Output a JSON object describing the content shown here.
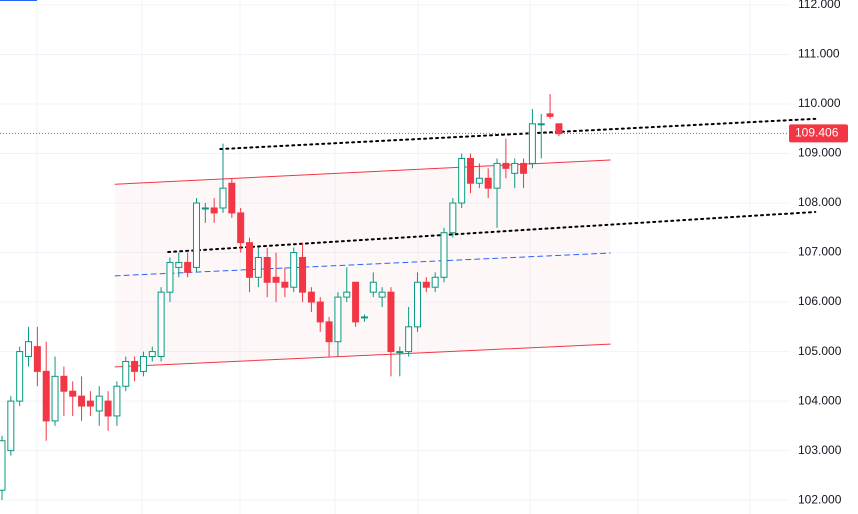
{
  "chart_data": {
    "type": "candlestick",
    "up_color": "#089981",
    "down_color": "#f23645",
    "open": [
      102.2,
      103.0,
      104.0,
      104.9,
      105.1,
      104.6,
      103.6,
      104.5,
      104.2,
      104.1,
      104.0,
      103.8,
      104.0,
      103.7,
      104.3,
      104.8,
      104.6,
      104.9,
      104.9,
      106.2,
      106.7,
      106.8,
      106.7,
      107.9,
      107.9,
      107.9,
      108.4,
      107.8,
      107.2,
      106.5,
      106.9,
      106.5,
      106.4,
      106.3,
      106.9,
      106.2,
      106.0,
      105.6,
      105.2,
      106.1,
      106.4,
      105.7,
      106.2,
      106.1,
      106.2,
      105.0,
      105.0,
      105.5,
      106.4,
      106.3,
      106.5,
      107.4,
      108.0,
      108.9,
      108.4,
      108.5,
      108.3,
      108.8,
      108.6,
      108.8,
      108.8,
      109.6,
      109.8,
      109.6
    ],
    "high": [
      103.3,
      104.1,
      105.1,
      105.5,
      105.5,
      105.2,
      104.9,
      104.7,
      104.4,
      104.5,
      104.2,
      104.3,
      104.2,
      104.4,
      104.9,
      104.9,
      105.0,
      105.1,
      106.3,
      106.9,
      107.0,
      107.0,
      108.1,
      108.0,
      108.1,
      109.2,
      108.5,
      107.9,
      107.3,
      107.1,
      107.1,
      107.0,
      106.7,
      107.1,
      107.2,
      106.3,
      106.1,
      105.7,
      106.2,
      106.7,
      106.4,
      105.75,
      106.6,
      106.3,
      106.3,
      105.1,
      105.9,
      106.6,
      106.5,
      106.6,
      107.5,
      108.1,
      109.0,
      109.0,
      108.8,
      108.7,
      108.9,
      109.3,
      108.9,
      108.9,
      109.9,
      109.8,
      110.2,
      109.6
    ],
    "low": [
      102.0,
      102.9,
      103.9,
      104.7,
      104.3,
      103.2,
      103.5,
      103.7,
      103.7,
      103.6,
      103.7,
      103.5,
      103.4,
      103.5,
      104.2,
      104.4,
      104.5,
      104.8,
      104.8,
      106.0,
      106.5,
      106.5,
      106.6,
      107.6,
      107.6,
      107.8,
      107.7,
      107.0,
      106.2,
      106.3,
      106.1,
      106.0,
      106.1,
      106.2,
      106.0,
      105.8,
      105.4,
      104.9,
      104.9,
      106.0,
      105.5,
      105.6,
      106.1,
      105.9,
      104.5,
      104.5,
      104.9,
      105.4,
      106.2,
      106.2,
      106.4,
      107.3,
      107.9,
      108.2,
      108.3,
      108.1,
      107.5,
      108.5,
      108.3,
      108.3,
      108.7,
      108.9,
      109.7,
      109.35
    ],
    "close": [
      103.2,
      104.0,
      105.0,
      105.2,
      104.6,
      103.6,
      104.5,
      104.2,
      104.1,
      103.9,
      103.9,
      104.1,
      103.7,
      104.3,
      104.8,
      104.6,
      104.9,
      105.0,
      106.2,
      106.8,
      106.8,
      106.6,
      108.0,
      107.9,
      107.8,
      108.3,
      107.8,
      107.2,
      106.5,
      106.9,
      106.4,
      106.4,
      106.3,
      107.0,
      106.2,
      106.0,
      105.6,
      105.2,
      106.1,
      106.2,
      105.6,
      105.7,
      106.4,
      106.2,
      105.0,
      105.0,
      105.5,
      106.4,
      106.3,
      106.5,
      107.4,
      108.0,
      108.9,
      108.4,
      108.5,
      108.3,
      108.8,
      108.7,
      108.8,
      108.6,
      109.6,
      109.6,
      109.75,
      109.4
    ],
    "last_price": 109.406,
    "trendlines": [
      {
        "x": [
          24.7,
          92
        ],
        "y": [
          109.09,
          109.7
        ],
        "color": "#000000",
        "style": "dotted"
      },
      {
        "x": [
          18.8,
          92
        ],
        "y": [
          107.01,
          107.82
        ],
        "color": "#000000",
        "style": "dotted"
      },
      {
        "x": [
          12.8,
          68.8
        ],
        "y": [
          108.38,
          108.87
        ],
        "color": "#f23645",
        "style": "solid"
      },
      {
        "x": [
          12.8,
          68.8
        ],
        "y": [
          104.69,
          105.15
        ],
        "color": "#f23645",
        "style": "solid"
      },
      {
        "x": [
          12.8,
          68.8
        ],
        "y": [
          106.53,
          106.99
        ],
        "color": "#2962ff",
        "style": "dashed"
      }
    ],
    "ylim": [
      101.72,
      112.1
    ],
    "yticks": [
      {
        "value": 102,
        "label": "102.000"
      },
      {
        "value": 103,
        "label": "103.000"
      },
      {
        "value": 104,
        "label": "104.000"
      },
      {
        "value": 105,
        "label": "105.000"
      },
      {
        "value": 106,
        "label": "106.000"
      },
      {
        "value": 107,
        "label": "107.000"
      },
      {
        "value": 108,
        "label": "108.000"
      },
      {
        "value": 109,
        "label": "109.000"
      },
      {
        "value": 110,
        "label": "110.000"
      },
      {
        "value": 111,
        "label": "111.000"
      },
      {
        "value": 112,
        "label": "112.000"
      }
    ],
    "grid": true
  }
}
